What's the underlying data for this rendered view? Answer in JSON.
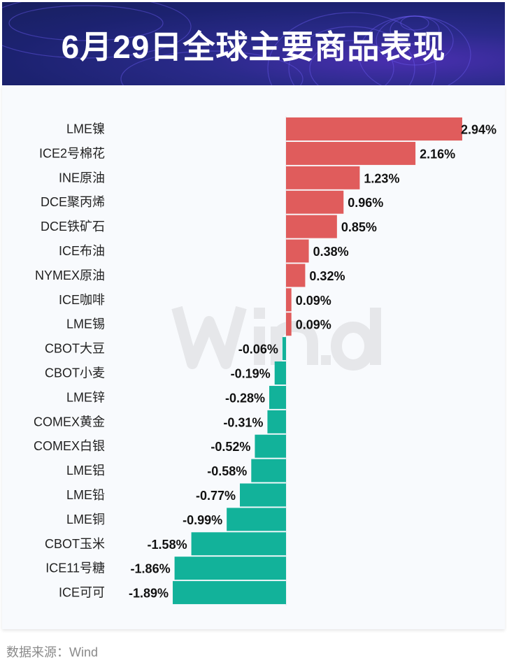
{
  "header": {
    "title": "6月29日全球主要商品表现"
  },
  "watermark": "Wind",
  "footer": {
    "source": "数据来源：Wind"
  },
  "colors": {
    "positive": "#e05c5c",
    "negative": "#12b29a"
  },
  "chart_data": {
    "type": "bar",
    "orientation": "horizontal",
    "title": "6月29日全球主要商品表现",
    "unit": "%",
    "categories": [
      "LME镍",
      "ICE2号棉花",
      "INE原油",
      "DCE聚丙烯",
      "DCE铁矿石",
      "ICE布油",
      "NYMEX原油",
      "ICE咖啡",
      "LME锡",
      "CBOT大豆",
      "CBOT小麦",
      "LME锌",
      "COMEX黄金",
      "COMEX白银",
      "LME铝",
      "LME铅",
      "LME铜",
      "CBOT玉米",
      "ICE11号糖",
      "ICE可可"
    ],
    "values": [
      2.94,
      2.16,
      1.23,
      0.96,
      0.85,
      0.38,
      0.32,
      0.09,
      0.09,
      -0.06,
      -0.19,
      -0.28,
      -0.31,
      -0.52,
      -0.58,
      -0.77,
      -0.99,
      -1.58,
      -1.86,
      -1.89
    ],
    "labels": [
      "2.94%",
      "2.16%",
      "1.23%",
      "0.96%",
      "0.85%",
      "0.38%",
      "0.32%",
      "0.09%",
      "0.09%",
      "-0.06%",
      "-0.19%",
      "-0.28%",
      "-0.31%",
      "-0.52%",
      "-0.58%",
      "-0.77%",
      "-0.99%",
      "-1.58%",
      "-1.86%",
      "-1.89%"
    ],
    "grid": false
  }
}
